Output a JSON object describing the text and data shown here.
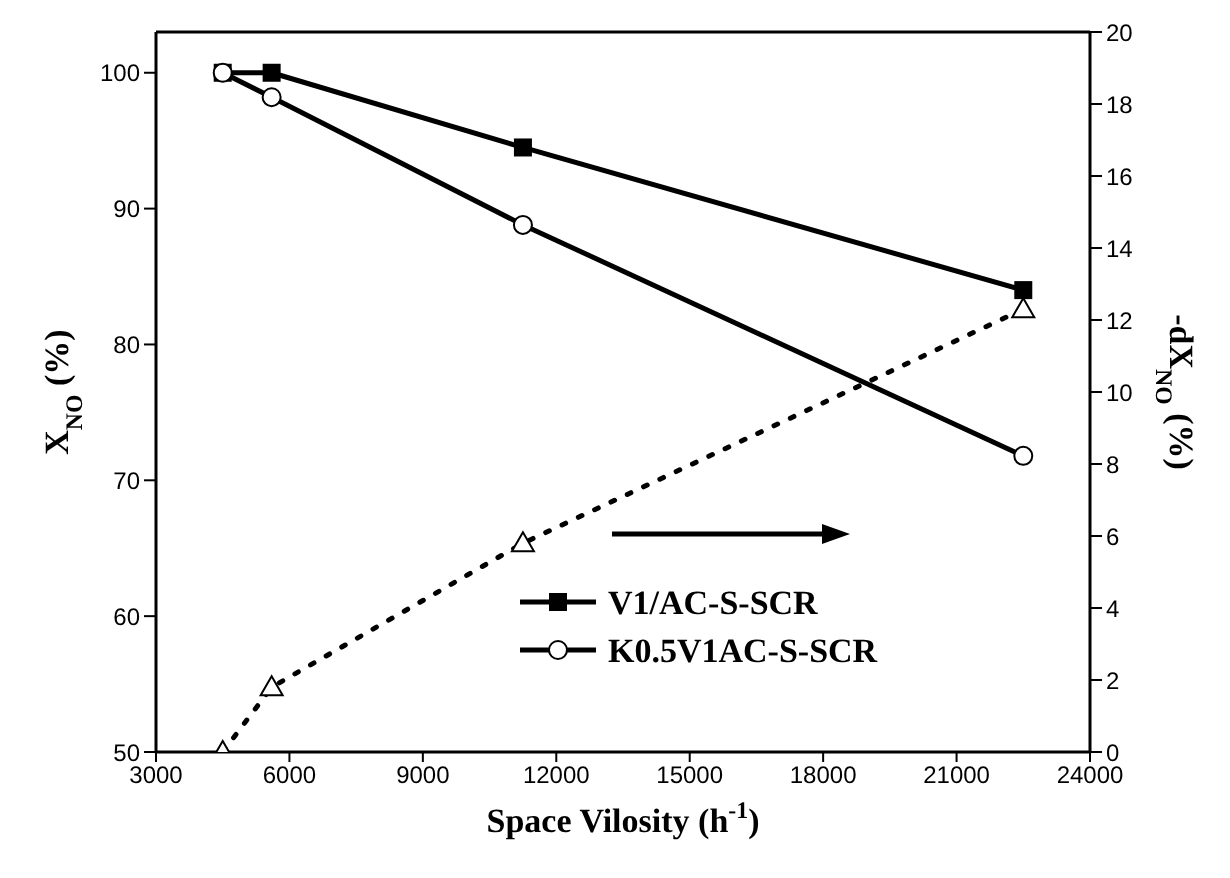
{
  "chart_data": {
    "type": "line",
    "xlabel": "Space Vilosity (h$^{-1}$)",
    "ylabel": "X$_{NO}$ (%)",
    "y2label": "-dX$_{NO}$ (%)",
    "xlim": [
      3000,
      24000
    ],
    "xticks": [
      3000,
      6000,
      9000,
      12000,
      15000,
      18000,
      21000,
      24000
    ],
    "ylim": [
      50,
      103
    ],
    "yticks": [
      50,
      60,
      70,
      80,
      90,
      100
    ],
    "y2lim": [
      0,
      20
    ],
    "y2ticks": [
      0,
      2,
      4,
      6,
      8,
      10,
      12,
      14,
      16,
      18,
      20
    ],
    "legend": "bottom right",
    "grid": false,
    "series": [
      {
        "name": "V1/AC-S-SCR",
        "color": "#000000",
        "marker": "square",
        "line_style": "solid",
        "x": [
          4500,
          5600,
          11250,
          22500
        ],
        "values": [
          100,
          100,
          94.5,
          84
        ]
      },
      {
        "name": "K0.5V1AC-S-SCR",
        "color": "#000000",
        "marker": "circle",
        "line_style": "solid",
        "x": [
          4500,
          5600,
          11250,
          22500
        ],
        "values": [
          100,
          98.2,
          88.8,
          71.8
        ]
      },
      {
        "color": "#000000",
        "marker": "triangle",
        "line_style": "dotted",
        "axis": "y2",
        "x": [
          4500,
          5600,
          11250,
          22500
        ],
        "values": [
          0,
          1.8,
          5.8,
          12.3
        ]
      }
    ]
  }
}
